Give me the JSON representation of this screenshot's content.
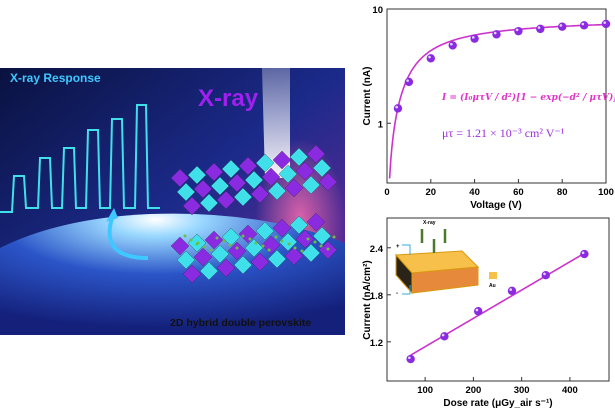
{
  "artwork": {
    "response_label": "X-ray Response",
    "xray_label": "X-ray",
    "caption": "2D hybrid double perovskite",
    "colors": {
      "cyan": "#3fe0ea",
      "purple": "#8a2be2",
      "bg": "#0d1a5a"
    }
  },
  "chart_data": [
    {
      "type": "scatter",
      "title": "",
      "xlabel": "Voltage (V)",
      "ylabel": "Current (nA)",
      "xlim": [
        0,
        100
      ],
      "ylim": [
        0.3,
        10
      ],
      "yscale": "log",
      "xticks": [
        "0",
        "20",
        "40",
        "60",
        "80",
        "100"
      ],
      "yticks": [
        "1",
        "10"
      ],
      "x": [
        5,
        10,
        20,
        30,
        40,
        50,
        60,
        70,
        80,
        90,
        100
      ],
      "y": [
        1.35,
        2.3,
        3.7,
        4.8,
        5.5,
        6.0,
        6.4,
        6.7,
        7.0,
        7.2,
        7.4
      ],
      "fit": "Hecht equation",
      "equation": "I = (I₀μτV / d²)[1 − exp(−d² / μτV)]",
      "annotation": "μτ = 1.21 × 10⁻³ cm² V⁻¹",
      "color": "#cc33cc",
      "marker_color": "#8a2be2"
    },
    {
      "type": "scatter",
      "title": "",
      "xlabel": "Dose rate (μGy_air s⁻¹)",
      "ylabel": "Current (nA/cm²)",
      "xlim": [
        21,
        481
      ],
      "ylim": [
        0.7,
        2.78
      ],
      "xticks": [
        "100",
        "200",
        "300",
        "400"
      ],
      "yticks": [
        "1.2",
        "1.8",
        "2.4"
      ],
      "x": [
        70,
        140,
        210,
        280,
        350,
        430
      ],
      "y": [
        0.98,
        1.27,
        1.59,
        1.85,
        2.05,
        2.32
      ],
      "fit": "linear",
      "fit_line": [
        [
          70,
          1.03
        ],
        [
          430,
          2.33
        ]
      ],
      "inset": {
        "xray_label": "X-ray",
        "electrode_label": "Au",
        "plus": "+",
        "minus": "-"
      },
      "color": "#cc33cc",
      "marker_color": "#8a2be2"
    }
  ]
}
